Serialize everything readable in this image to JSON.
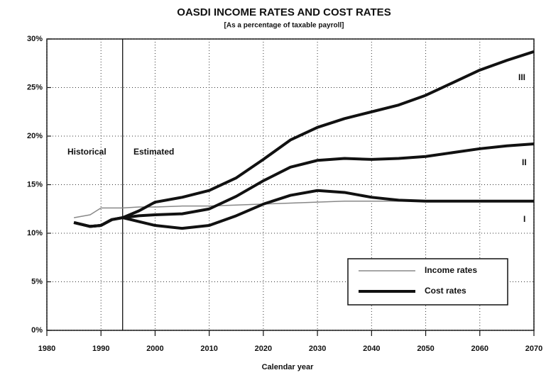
{
  "chart_data": {
    "type": "line",
    "title": "OASDI  INCOME RATES AND COST  RATES",
    "subtitle": "[As a percentage of taxable payroll]",
    "x_label": "Calendar year",
    "annotations": [
      "Historical",
      "Estimated"
    ],
    "divider": 1994,
    "legend": [
      {
        "label": "Income rates",
        "color": "#888888",
        "width": 1.5
      },
      {
        "label": "Cost rates",
        "color": "#111111",
        "width": 4
      }
    ],
    "x": [
      1985,
      1988,
      1990,
      1992,
      1994,
      1997,
      2000,
      2005,
      2010,
      2015,
      2020,
      2025,
      2030,
      2035,
      2040,
      2045,
      2050,
      2055,
      2060,
      2065,
      2070
    ],
    "series": [
      {
        "color": "#888888",
        "width": 1.5,
        "values": [
          11.6,
          11.9,
          12.6,
          12.6,
          12.6,
          12.7,
          12.7,
          12.8,
          12.8,
          12.9,
          13.0,
          13.1,
          13.2,
          13.3,
          13.3,
          13.3,
          13.3,
          13.3,
          13.3,
          13.3,
          13.3
        ]
      },
      {
        "name": "I",
        "color": "#111111",
        "width": 4,
        "values": [
          11.1,
          10.7,
          10.8,
          11.4,
          11.6,
          11.2,
          10.8,
          10.5,
          10.8,
          11.8,
          13.0,
          13.9,
          14.4,
          14.2,
          13.7,
          13.4,
          13.3,
          13.3,
          13.3,
          13.3,
          13.3
        ]
      },
      {
        "name": "II",
        "color": "#111111",
        "width": 4,
        "values": [
          11.1,
          10.7,
          10.8,
          11.4,
          11.6,
          11.8,
          11.9,
          12.0,
          12.5,
          13.8,
          15.4,
          16.8,
          17.5,
          17.7,
          17.6,
          17.7,
          17.9,
          18.3,
          18.7,
          19.0,
          19.2
        ]
      },
      {
        "name": "III",
        "color": "#111111",
        "width": 4,
        "values": [
          11.1,
          10.7,
          10.8,
          11.4,
          11.6,
          12.3,
          13.2,
          13.7,
          14.4,
          15.7,
          17.6,
          19.6,
          20.9,
          21.8,
          22.5,
          23.2,
          24.2,
          25.5,
          26.8,
          27.8,
          28.7
        ]
      }
    ],
    "xlim": [
      1980,
      2070
    ],
    "xticks": [
      1980,
      1990,
      2000,
      2010,
      2020,
      2030,
      2040,
      2050,
      2060,
      2070
    ],
    "ylim": [
      0,
      30
    ],
    "yticks": [
      {
        "value": 0,
        "label": "0%"
      },
      {
        "value": 5,
        "label": "5%"
      },
      {
        "value": 10,
        "label": "10%"
      },
      {
        "value": 15,
        "label": "15%"
      },
      {
        "value": 20,
        "label": "20%"
      },
      {
        "value": 25,
        "label": "25%"
      },
      {
        "value": 30,
        "label": "30%"
      }
    ],
    "grid": true
  }
}
